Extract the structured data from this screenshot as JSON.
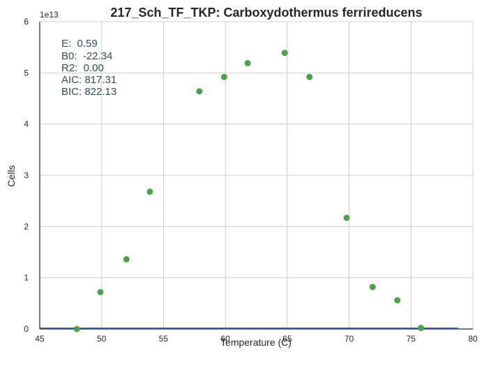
{
  "chart_data": {
    "type": "scatter",
    "title": "217_Sch_TF_TKP: Carboxydothermus ferrireducens",
    "xlabel": "Temperature (C)",
    "ylabel": "Cells",
    "y_scale_label": "1e13",
    "xlim": [
      45,
      80
    ],
    "ylim": [
      0,
      6
    ],
    "x_ticks": [
      45,
      50,
      55,
      60,
      65,
      70,
      75,
      80
    ],
    "y_ticks": [
      0,
      1,
      2,
      3,
      4,
      5,
      6
    ],
    "grid": true,
    "colors": {
      "points": "#4aa24a",
      "fit_line": "#3b5a8c",
      "axes": "#262626",
      "grid": "#cccccc"
    },
    "series": [
      {
        "x": [
          48.0,
          49.9,
          52.0,
          53.9,
          57.9,
          59.9,
          61.8,
          64.8,
          66.8,
          69.8,
          71.9,
          73.9,
          75.8
        ],
        "y": [
          0.0,
          0.72,
          1.36,
          2.68,
          4.64,
          4.92,
          5.19,
          5.39,
          4.92,
          2.17,
          0.82,
          0.56,
          0.02
        ]
      }
    ],
    "fit_line": {
      "x": [
        45,
        78.8
      ],
      "y": [
        0.0,
        0.0
      ]
    },
    "annotations": [
      "E:  0.59",
      "B0:  -22.34",
      "R2:  0.00",
      "AIC: 817.31",
      "BIC: 822.13"
    ]
  }
}
